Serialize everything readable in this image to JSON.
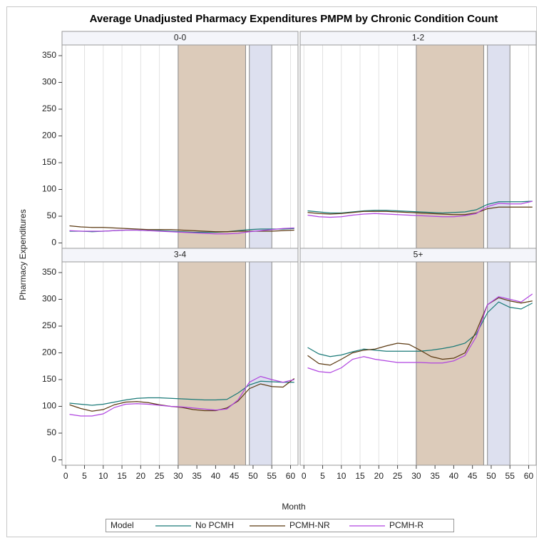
{
  "chart_data": {
    "type": "line",
    "title": "Average Unadjusted Pharmacy Expenditures PMPM by Chronic Condition Count",
    "x_label": "Month",
    "y_label": "Pharmacy Expenditures",
    "legend_title": "Model",
    "xlim": [
      -1,
      62
    ],
    "xticks": [
      0,
      5,
      10,
      15,
      20,
      25,
      30,
      35,
      40,
      45,
      50,
      55,
      60
    ],
    "xgrid": true,
    "ylim": [
      -10,
      370
    ],
    "yticks": [
      0,
      50,
      100,
      150,
      200,
      250,
      300,
      350
    ],
    "bands": [
      {
        "from": 30,
        "to": 48,
        "color": "#dccbba"
      },
      {
        "from": 49,
        "to": 55,
        "color": "#dde0ef"
      }
    ],
    "x": [
      1,
      4,
      7,
      10,
      13,
      16,
      19,
      22,
      25,
      28,
      31,
      34,
      37,
      40,
      43,
      46,
      49,
      52,
      55,
      58,
      61
    ],
    "series": [
      {
        "name": "No PCMH",
        "color": "#1a7a78"
      },
      {
        "name": "PCMH-NR",
        "color": "#5c3a12"
      },
      {
        "name": "PCMH-R",
        "color": "#b044e0"
      }
    ],
    "panels": [
      {
        "title": "0-0",
        "values": [
          [
            22,
            22,
            21,
            22,
            23,
            24,
            24,
            23,
            23,
            22,
            21,
            20,
            20,
            20,
            21,
            23,
            25,
            26,
            26,
            26,
            27
          ],
          [
            32,
            30,
            29,
            29,
            28,
            27,
            26,
            25,
            25,
            25,
            24,
            23,
            22,
            21,
            21,
            22,
            22,
            22,
            22,
            23,
            24
          ],
          [
            23,
            22,
            22,
            22,
            23,
            24,
            24,
            23,
            22,
            21,
            20,
            19,
            18,
            17,
            17,
            18,
            21,
            23,
            25,
            27,
            28
          ]
        ]
      },
      {
        "title": "1-2",
        "values": [
          [
            60,
            58,
            56,
            56,
            58,
            60,
            61,
            61,
            60,
            59,
            58,
            57,
            56,
            57,
            58,
            62,
            72,
            77,
            77,
            77,
            78
          ],
          [
            57,
            55,
            54,
            55,
            57,
            59,
            59,
            59,
            58,
            57,
            56,
            55,
            54,
            53,
            53,
            56,
            64,
            67,
            67,
            67,
            67
          ],
          [
            52,
            49,
            48,
            49,
            52,
            54,
            55,
            54,
            53,
            52,
            51,
            50,
            49,
            49,
            51,
            55,
            68,
            74,
            73,
            73,
            78
          ]
        ]
      },
      {
        "title": "3-4",
        "values": [
          [
            106,
            104,
            102,
            104,
            108,
            112,
            115,
            116,
            116,
            115,
            114,
            113,
            112,
            112,
            113,
            125,
            140,
            147,
            146,
            145,
            145
          ],
          [
            103,
            96,
            91,
            94,
            103,
            108,
            109,
            107,
            103,
            100,
            98,
            94,
            92,
            92,
            97,
            110,
            133,
            142,
            137,
            136,
            152
          ],
          [
            85,
            82,
            82,
            86,
            98,
            104,
            105,
            104,
            102,
            100,
            99,
            97,
            95,
            93,
            95,
            112,
            145,
            156,
            150,
            145,
            150
          ]
        ]
      },
      {
        "title": "5+",
        "values": [
          [
            210,
            198,
            193,
            196,
            202,
            207,
            205,
            203,
            203,
            203,
            203,
            205,
            208,
            212,
            218,
            235,
            275,
            295,
            285,
            282,
            293
          ],
          [
            195,
            180,
            177,
            188,
            200,
            205,
            207,
            213,
            218,
            216,
            205,
            193,
            188,
            190,
            200,
            240,
            290,
            303,
            297,
            293,
            297
          ],
          [
            172,
            165,
            163,
            172,
            188,
            193,
            188,
            185,
            182,
            182,
            182,
            181,
            181,
            185,
            195,
            230,
            290,
            305,
            300,
            295,
            310
          ]
        ]
      }
    ]
  }
}
